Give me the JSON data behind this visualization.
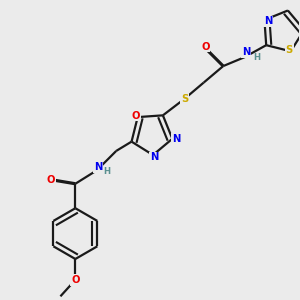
{
  "background_color": "#ebebeb",
  "bond_color": "#1a1a1a",
  "atom_colors": {
    "N": "#0000ee",
    "O": "#ee0000",
    "S": "#ccaa00",
    "H": "#5a9090"
  },
  "lw": 1.6,
  "dbl_sep": 0.018,
  "figsize": [
    3.0,
    3.0
  ],
  "dpi": 100,
  "fs": 7.2
}
